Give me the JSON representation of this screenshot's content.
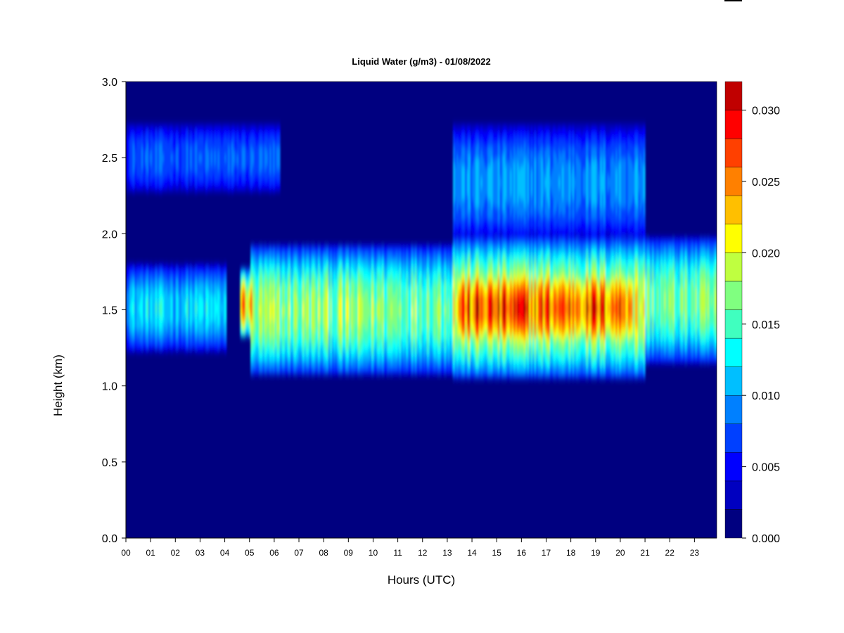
{
  "chart_data": {
    "type": "heatmap",
    "title": "Liquid Water (g/m3) - 01/08/2022",
    "xlabel": "Hours (UTC)",
    "ylabel": "Height (km)",
    "x_ticks": [
      "00",
      "01",
      "02",
      "03",
      "04",
      "05",
      "06",
      "07",
      "08",
      "09",
      "10",
      "11",
      "12",
      "13",
      "14",
      "15",
      "16",
      "17",
      "18",
      "19",
      "20",
      "21",
      "22",
      "23"
    ],
    "xlim": [
      0,
      23.9
    ],
    "ylim": [
      0,
      3.0
    ],
    "y_ticks": [
      "0.0",
      "0.5",
      "1.0",
      "1.5",
      "2.0",
      "2.5",
      "3.0"
    ],
    "colorbar": {
      "range": [
        0,
        0.032
      ],
      "n_levels": 16,
      "tick_labels": [
        "0.000",
        "0.005",
        "0.010",
        "0.015",
        "0.020",
        "0.025",
        "0.030"
      ],
      "colors": [
        "#000080",
        "#0000C0",
        "#0000FF",
        "#0040FF",
        "#0080FF",
        "#00BFFF",
        "#00FFFF",
        "#40FFBF",
        "#80FF80",
        "#BFFF40",
        "#FFFF00",
        "#FFBF00",
        "#FF8000",
        "#FF4000",
        "#FF0000",
        "#C00000",
        "#800000"
      ]
    },
    "regions": [
      {
        "hours": [
          0,
          4
        ],
        "height_km": [
          1.22,
          1.78
        ],
        "value": 0.011
      },
      {
        "hours": [
          0,
          6.2
        ],
        "height_km": [
          2.25,
          2.72
        ],
        "value": 0.007
      },
      {
        "hours": [
          4.6,
          5.1
        ],
        "height_km": [
          1.3,
          1.75
        ],
        "value": 0.022
      },
      {
        "hours": [
          5,
          13.2
        ],
        "height_km": [
          1.07,
          1.9
        ],
        "value": 0.016
      },
      {
        "hours": [
          13.2,
          21
        ],
        "height_km": [
          1.05,
          1.95
        ],
        "value": 0.019
      },
      {
        "hours": [
          13.4,
          20.5
        ],
        "height_km": [
          1.2,
          1.8
        ],
        "value": 0.025
      },
      {
        "hours": [
          13.2,
          21
        ],
        "height_km": [
          1.95,
          2.7
        ],
        "value": 0.009
      },
      {
        "hours": [
          21,
          23.9
        ],
        "height_km": [
          1.15,
          1.95
        ],
        "value": 0.015
      }
    ]
  }
}
